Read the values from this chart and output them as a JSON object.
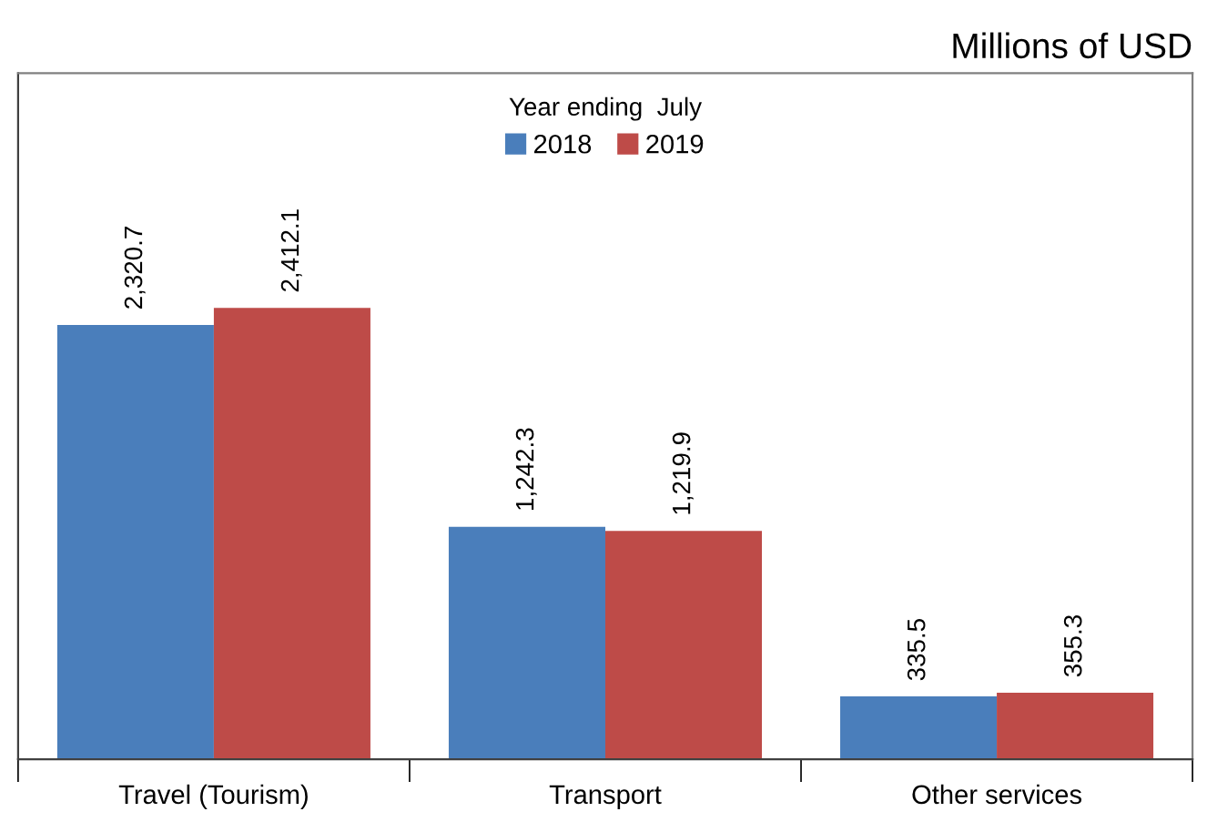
{
  "chart_data": {
    "type": "bar",
    "title": "Millions of USD",
    "legend_title": "Year ending  July",
    "categories": [
      "Travel (Tourism)",
      "Transport",
      "Other services"
    ],
    "series": [
      {
        "name": "2018",
        "color": "#4a7ebb",
        "values": [
          2320.7,
          1242.3,
          335.5
        ],
        "value_labels": [
          "2,320.7",
          "1,242.3",
          "335.5"
        ]
      },
      {
        "name": "2019",
        "color": "#be4b48",
        "values": [
          2412.1,
          1219.9,
          355.3
        ],
        "value_labels": [
          "2,412.1",
          "1,219.9",
          "355.3"
        ]
      }
    ],
    "legend": "top",
    "grid": false
  }
}
